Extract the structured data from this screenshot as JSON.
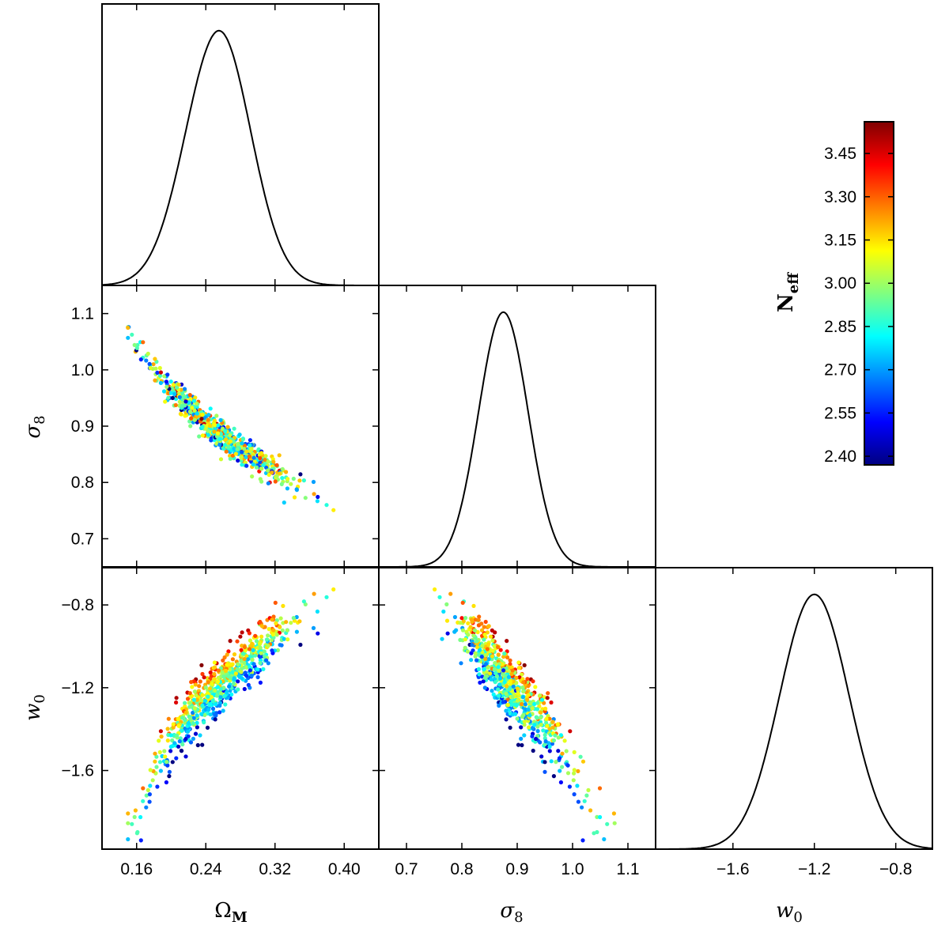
{
  "chart_data": {
    "type": "scatter",
    "layout": "corner-plot",
    "parameters": [
      {
        "key": "om",
        "label": "Ω",
        "label_sub": "M",
        "range": [
          0.12,
          0.44
        ],
        "ticks": [
          0.16,
          0.24,
          0.32,
          0.4
        ],
        "tick_labels": [
          "0.16",
          "0.24",
          "0.32",
          "0.40"
        ]
      },
      {
        "key": "s8",
        "label": "σ",
        "label_sub": "8",
        "range": [
          0.65,
          1.15
        ],
        "ticks": [
          0.7,
          0.8,
          0.9,
          1.0,
          1.1
        ],
        "tick_labels": [
          "0.7",
          "0.8",
          "0.9",
          "1.0",
          "1.1"
        ]
      },
      {
        "key": "w0",
        "label": "w",
        "label_sub": "0",
        "range": [
          -1.98,
          -0.62
        ],
        "ticks": [
          -1.6,
          -1.2,
          -0.8
        ],
        "tick_labels": [
          "−1.6",
          "−1.2",
          "−0.8"
        ]
      }
    ],
    "marginals": [
      {
        "param": "om",
        "mean": 0.25,
        "sigma": 0.038,
        "skew": 0.15
      },
      {
        "param": "s8",
        "mean": 0.875,
        "sigma": 0.045,
        "skew": 0.0
      },
      {
        "param": "w0",
        "mean": -1.2,
        "sigma": 0.17,
        "skew": 0.0
      }
    ],
    "scatter_relations": {
      "s8_vs_om": {
        "curve": [
          [
            0.15,
            1.075
          ],
          [
            0.16,
            1.045
          ],
          [
            0.18,
            1.0
          ],
          [
            0.2,
            0.965
          ],
          [
            0.22,
            0.935
          ],
          [
            0.24,
            0.905
          ],
          [
            0.26,
            0.88
          ],
          [
            0.28,
            0.86
          ],
          [
            0.3,
            0.84
          ],
          [
            0.32,
            0.82
          ],
          [
            0.34,
            0.8
          ],
          [
            0.36,
            0.785
          ],
          [
            0.38,
            0.765
          ],
          [
            0.4,
            0.75
          ]
        ],
        "scatter": 0.012
      },
      "w0_vs_om": {
        "curve": [
          [
            0.15,
            -1.9
          ],
          [
            0.16,
            -1.85
          ],
          [
            0.18,
            -1.6
          ],
          [
            0.2,
            -1.45
          ],
          [
            0.22,
            -1.34
          ],
          [
            0.24,
            -1.26
          ],
          [
            0.26,
            -1.18
          ],
          [
            0.28,
            -1.1
          ],
          [
            0.3,
            -1.03
          ],
          [
            0.32,
            -0.96
          ],
          [
            0.34,
            -0.9
          ],
          [
            0.36,
            -0.84
          ],
          [
            0.38,
            -0.79
          ],
          [
            0.4,
            -0.75
          ]
        ],
        "scatter": 0.06
      },
      "w0_vs_s8": {
        "curve": [
          [
            0.74,
            -0.75
          ],
          [
            0.78,
            -0.86
          ],
          [
            0.82,
            -1.0
          ],
          [
            0.86,
            -1.14
          ],
          [
            0.9,
            -1.27
          ],
          [
            0.94,
            -1.4
          ],
          [
            0.98,
            -1.52
          ],
          [
            1.02,
            -1.64
          ],
          [
            1.05,
            -1.75
          ],
          [
            1.08,
            -1.9
          ]
        ],
        "scatter": 0.05
      }
    },
    "n_points": 700,
    "color_param": {
      "label": "N",
      "label_sub": "eff",
      "range": [
        2.37,
        3.56
      ],
      "ticks": [
        2.4,
        2.55,
        2.7,
        2.85,
        3.0,
        3.15,
        3.3,
        3.45
      ],
      "tick_labels": [
        "2.40",
        "2.55",
        "2.70",
        "2.85",
        "3.00",
        "3.15",
        "3.30",
        "3.45"
      ],
      "colormap": "jet"
    },
    "colors": {
      "line": "#000000",
      "jet_stops": [
        "#000080",
        "#0000ff",
        "#0080ff",
        "#00ffff",
        "#80ff80",
        "#ffff00",
        "#ff8000",
        "#ff0000",
        "#800000"
      ]
    }
  }
}
